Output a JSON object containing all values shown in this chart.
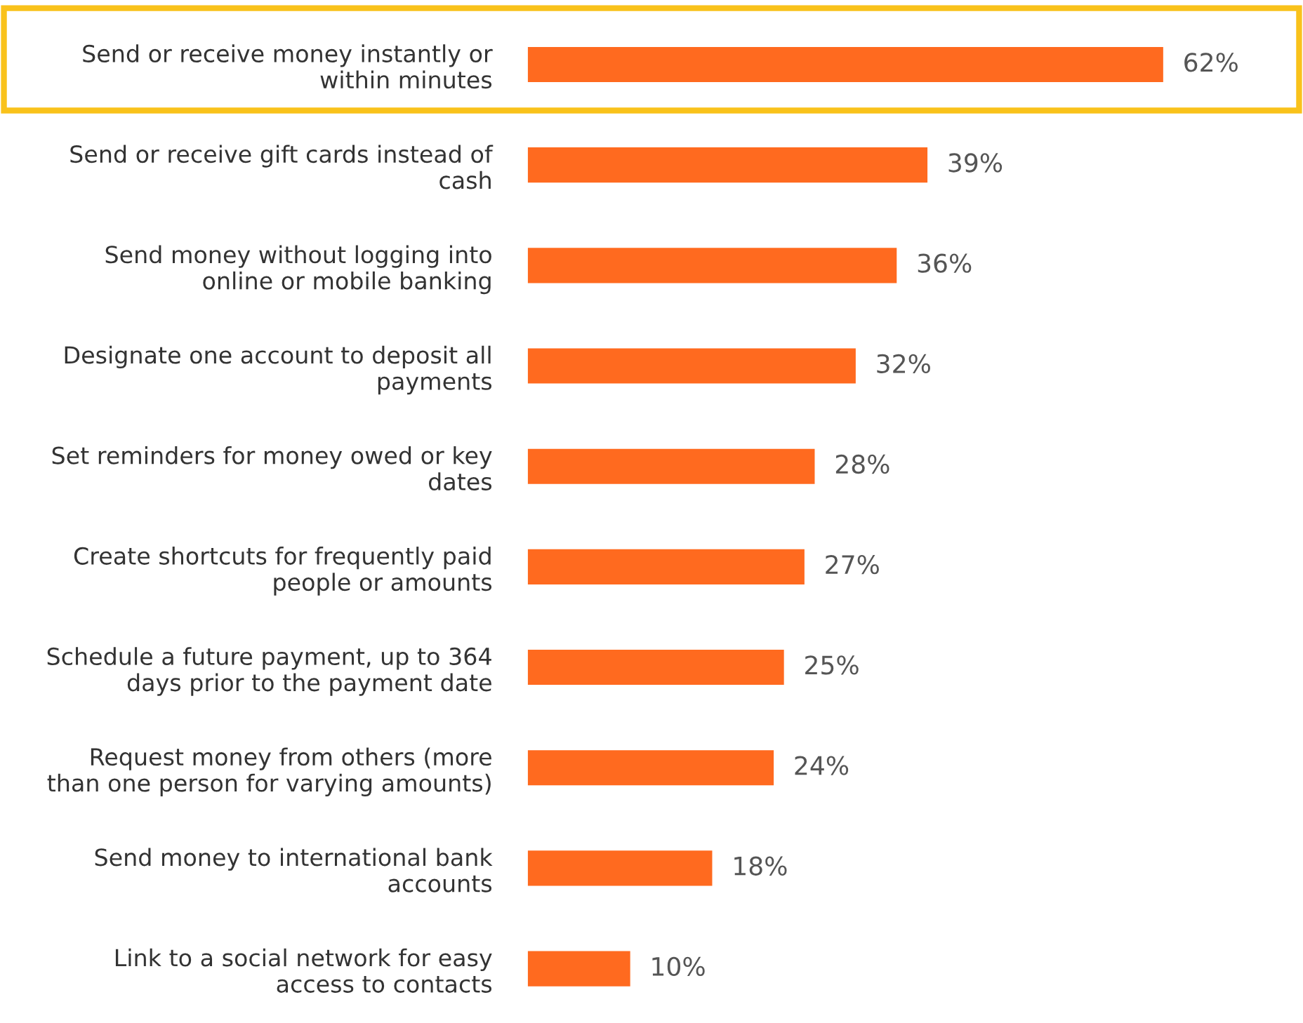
{
  "chart_data": {
    "type": "bar",
    "orientation": "horizontal",
    "categories": [
      "Send or receive money instantly or\nwithin minutes",
      "Send or receive gift cards instead of\ncash",
      "Send money without logging into\nonline or mobile banking",
      "Designate one account to deposit all\npayments",
      "Set reminders for money owed or key\ndates",
      "Create shortcuts for frequently paid\npeople or amounts",
      "Schedule a future payment, up to 364\ndays prior to the payment date",
      "Request money from others (more\nthan one person for varying amounts)",
      "Send money to international bank\naccounts",
      "Link to a social network for easy\naccess to contacts"
    ],
    "values": [
      62,
      39,
      36,
      32,
      28,
      27,
      25,
      24,
      18,
      10
    ],
    "value_labels": [
      "62%",
      "39%",
      "36%",
      "32%",
      "28%",
      "27%",
      "25%",
      "24%",
      "18%",
      "10%"
    ],
    "color": "#ff6a1f",
    "grid": false,
    "legend": false
  }
}
